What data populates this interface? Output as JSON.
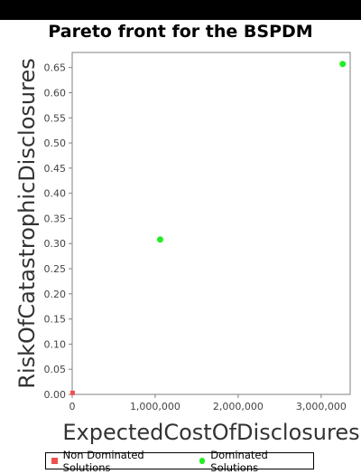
{
  "chart_data": {
    "type": "scatter",
    "title": "Pareto front for the BSPDM",
    "xlabel": "ExpectedCostOfDisclosures",
    "ylabel": "RiskOfCatastrophicDisclosures",
    "xlim": [
      0,
      3350000
    ],
    "ylim": [
      0,
      0.68
    ],
    "x_ticks": [
      0,
      1000000,
      2000000,
      3000000
    ],
    "x_tick_labels": [
      "0",
      "1,000,000",
      "2,000,000",
      "3,000,000"
    ],
    "y_ticks": [
      0.0,
      0.05,
      0.1,
      0.15,
      0.2,
      0.25,
      0.3,
      0.35,
      0.4,
      0.45,
      0.5,
      0.55,
      0.6,
      0.65
    ],
    "y_tick_labels": [
      "0.00",
      "0.05",
      "0.10",
      "0.15",
      "0.20",
      "0.25",
      "0.30",
      "0.35",
      "0.40",
      "0.45",
      "0.50",
      "0.55",
      "0.60",
      "0.65"
    ],
    "grid": false,
    "legend_placement": "bottom",
    "series": [
      {
        "name": "Non Dominated Solutions",
        "marker": "square",
        "color": "#f05050",
        "points": [
          {
            "x": 5000,
            "y": 0.003
          }
        ]
      },
      {
        "name": "Dominated Solutions",
        "marker": "circle",
        "color": "#22ee22",
        "points": [
          {
            "x": 1060000,
            "y": 0.308
          },
          {
            "x": 3260000,
            "y": 0.657
          }
        ]
      }
    ]
  }
}
